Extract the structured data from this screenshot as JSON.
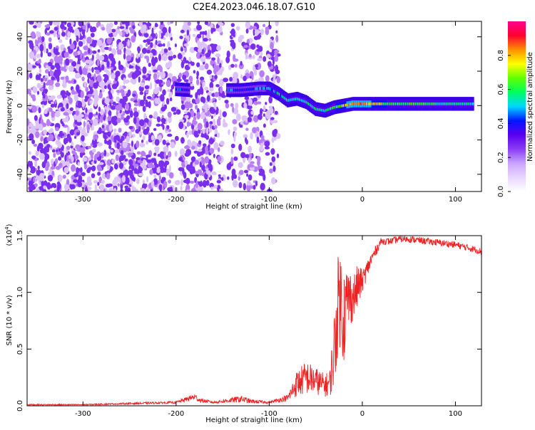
{
  "title": "C2E4.2023.046.18.07.G10",
  "colors": {
    "snr_line": "#ee2222",
    "scatter": "#7a2ef0",
    "colorbar": [
      "#ffffff",
      "#e8d6ff",
      "#c8a4ff",
      "#8a3cf2",
      "#5a00f0",
      "#0018ff",
      "#00d8ff",
      "#00ff60",
      "#60ff00",
      "#ffff00",
      "#ff9000",
      "#ff0030",
      "#ff0090"
    ]
  },
  "chart_data": [
    {
      "type": "heatmap",
      "title": "C2E4.2023.046.18.07.G10",
      "xlabel": "Height of straight line (km)",
      "ylabel": "Frequency (Hz)",
      "xlim": [
        -360,
        128
      ],
      "ylim": [
        -50,
        49
      ],
      "xticks": [
        -300,
        -200,
        -100,
        0,
        100
      ],
      "yticks": [
        -40,
        -20,
        0,
        20,
        40
      ],
      "colorbar": {
        "label": "Normalized spectral amplitude",
        "range": [
          0,
          1
        ],
        "ticks": [
          0.0,
          0.2,
          0.4,
          0.6,
          0.8
        ]
      },
      "signal_track": [
        {
          "x": -200,
          "freq": 9.5,
          "amp": 0.45
        },
        {
          "x": -185,
          "freq": 9,
          "amp": 0.35
        },
        {
          "x": -145,
          "freq": 9,
          "amp": 0.45
        },
        {
          "x": -130,
          "freq": 9,
          "amp": 0.4
        },
        {
          "x": -110,
          "freq": 10,
          "amp": 0.45
        },
        {
          "x": -100,
          "freq": 10,
          "amp": 0.5
        },
        {
          "x": -90,
          "freq": 7,
          "amp": 0.5
        },
        {
          "x": -80,
          "freq": 3,
          "amp": 0.6
        },
        {
          "x": -70,
          "freq": 4,
          "amp": 0.5
        },
        {
          "x": -60,
          "freq": 2,
          "amp": 0.55
        },
        {
          "x": -50,
          "freq": -2,
          "amp": 0.55
        },
        {
          "x": -40,
          "freq": -3,
          "amp": 0.55
        },
        {
          "x": -30,
          "freq": -1,
          "amp": 0.6
        },
        {
          "x": -20,
          "freq": 0,
          "amp": 0.75
        },
        {
          "x": -10,
          "freq": 1,
          "amp": 0.8
        },
        {
          "x": 0,
          "freq": 1,
          "amp": 0.85
        },
        {
          "x": 30,
          "freq": 1,
          "amp": 0.6
        },
        {
          "x": 60,
          "freq": 1,
          "amp": 0.6
        },
        {
          "x": 90,
          "freq": 1,
          "amp": 0.55
        },
        {
          "x": 120,
          "freq": 1,
          "amp": 0.55
        }
      ]
    },
    {
      "type": "line",
      "xlabel": "Height of straight line (km)",
      "ylabel": "SNR (10 * v/v)",
      "y_multiplier": "(x10",
      "y_multiplier_exp": "4",
      "xlim": [
        -360,
        128
      ],
      "ylim": [
        0,
        1.5
      ],
      "xticks": [
        -300,
        -200,
        -100,
        0,
        100
      ],
      "yticks": [
        "0.0",
        "0.5",
        "1.0",
        "1.5"
      ],
      "series": [
        {
          "x": [
            -360,
            -300,
            -250,
            -200,
            -180,
            -175,
            -160,
            -130,
            -120,
            -100,
            -80,
            -70,
            -60,
            -50,
            -40,
            -35,
            -30,
            -25,
            -20,
            -15,
            -10,
            -5,
            0,
            10,
            20,
            30,
            40,
            50,
            60,
            70,
            80,
            90,
            100,
            110,
            120,
            128
          ],
          "y": [
            0.01,
            0.01,
            0.02,
            0.03,
            0.08,
            0.05,
            0.03,
            0.06,
            0.04,
            0.03,
            0.07,
            0.2,
            0.25,
            0.22,
            0.18,
            0.2,
            0.5,
            1.0,
            0.8,
            0.95,
            0.95,
            1.05,
            1.1,
            1.3,
            1.45,
            1.45,
            1.47,
            1.47,
            1.46,
            1.45,
            1.44,
            1.43,
            1.42,
            1.4,
            1.38,
            1.36
          ],
          "noise_amplitude": [
            0.005,
            0.005,
            0.008,
            0.01,
            0.03,
            0.02,
            0.01,
            0.03,
            0.02,
            0.01,
            0.03,
            0.12,
            0.15,
            0.12,
            0.1,
            0.12,
            0.35,
            0.45,
            0.45,
            0.3,
            0.2,
            0.2,
            0.1,
            0.06,
            0.03,
            0.03,
            0.03,
            0.03,
            0.03,
            0.03,
            0.03,
            0.03,
            0.03,
            0.03,
            0.03,
            0.03
          ]
        }
      ]
    }
  ]
}
